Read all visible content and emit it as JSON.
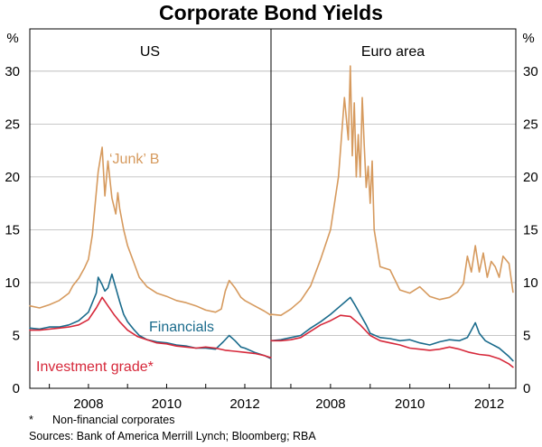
{
  "chart_data": {
    "type": "line",
    "title": "Corporate Bond Yields",
    "unit_left": "%",
    "unit_right": "%",
    "ylim": [
      0,
      34
    ],
    "yticks": [
      0,
      5,
      10,
      15,
      20,
      25,
      30
    ],
    "xlim": [
      2006.5,
      2012.67
    ],
    "xticks": [
      2008,
      2010,
      2012
    ],
    "xtick_labels": [
      "2008",
      "2010",
      "2012"
    ],
    "grid": true,
    "colors": {
      "junk": "#d69a5e",
      "financials": "#1a6b8c",
      "investment": "#d6283a"
    },
    "panels": [
      {
        "name": "US",
        "series": [
          {
            "name": "'Junk' B",
            "color": "#d69a5e",
            "x": [
              2006.5,
              2006.75,
              2007.0,
              2007.25,
              2007.5,
              2007.6,
              2007.75,
              2007.9,
              2008.0,
              2008.1,
              2008.25,
              2008.35,
              2008.42,
              2008.5,
              2008.6,
              2008.7,
              2008.75,
              2008.8,
              2008.9,
              2009.0,
              2009.15,
              2009.3,
              2009.5,
              2009.75,
              2010.0,
              2010.25,
              2010.5,
              2010.75,
              2011.0,
              2011.25,
              2011.4,
              2011.5,
              2011.6,
              2011.75,
              2011.9,
              2012.0,
              2012.25,
              2012.5,
              2012.67
            ],
            "y": [
              7.8,
              7.6,
              7.9,
              8.3,
              9.0,
              9.7,
              10.4,
              11.4,
              12.2,
              14.5,
              20.5,
              22.8,
              18.2,
              21.5,
              18.0,
              16.5,
              18.5,
              17.0,
              15.0,
              13.5,
              12.0,
              10.5,
              9.6,
              9.0,
              8.7,
              8.3,
              8.1,
              7.8,
              7.4,
              7.2,
              7.5,
              9.2,
              10.2,
              9.5,
              8.6,
              8.3,
              7.8,
              7.3,
              6.9
            ]
          },
          {
            "name": "Financials",
            "color": "#1a6b8c",
            "x": [
              2006.5,
              2006.75,
              2007.0,
              2007.25,
              2007.5,
              2007.75,
              2008.0,
              2008.2,
              2008.25,
              2008.35,
              2008.42,
              2008.5,
              2008.6,
              2008.7,
              2008.8,
              2008.9,
              2009.0,
              2009.15,
              2009.3,
              2009.5,
              2009.75,
              2010.0,
              2010.25,
              2010.5,
              2010.75,
              2011.0,
              2011.25,
              2011.45,
              2011.6,
              2011.75,
              2011.9,
              2012.0,
              2012.25,
              2012.5,
              2012.67
            ],
            "y": [
              5.7,
              5.6,
              5.8,
              5.8,
              6.0,
              6.4,
              7.2,
              9.0,
              10.5,
              9.8,
              9.2,
              9.5,
              10.8,
              9.5,
              8.2,
              7.0,
              6.3,
              5.6,
              5.0,
              4.6,
              4.4,
              4.3,
              4.1,
              4.0,
              3.8,
              3.8,
              3.7,
              4.4,
              5.0,
              4.5,
              3.9,
              3.8,
              3.4,
              3.1,
              2.8
            ]
          },
          {
            "name": "Investment grade*",
            "color": "#d6283a",
            "x": [
              2006.5,
              2006.75,
              2007.0,
              2007.25,
              2007.5,
              2007.75,
              2008.0,
              2008.2,
              2008.35,
              2008.5,
              2008.65,
              2008.8,
              2009.0,
              2009.25,
              2009.5,
              2009.75,
              2010.0,
              2010.25,
              2010.5,
              2010.75,
              2011.0,
              2011.25,
              2011.5,
              2011.75,
              2012.0,
              2012.25,
              2012.5,
              2012.67
            ],
            "y": [
              5.5,
              5.5,
              5.6,
              5.7,
              5.8,
              6.0,
              6.5,
              7.6,
              8.6,
              7.8,
              7.0,
              6.3,
              5.5,
              4.9,
              4.6,
              4.3,
              4.2,
              4.0,
              3.9,
              3.8,
              3.9,
              3.8,
              3.6,
              3.5,
              3.4,
              3.3,
              3.1,
              2.9
            ]
          }
        ]
      },
      {
        "name": "Euro area",
        "series": [
          {
            "name": "'Junk' B",
            "color": "#d69a5e",
            "x": [
              2006.5,
              2006.75,
              2007.0,
              2007.25,
              2007.5,
              2007.75,
              2008.0,
              2008.2,
              2008.35,
              2008.45,
              2008.5,
              2008.55,
              2008.6,
              2008.65,
              2008.7,
              2008.75,
              2008.8,
              2008.85,
              2008.9,
              2008.95,
              2009.0,
              2009.05,
              2009.1,
              2009.25,
              2009.5,
              2009.75,
              2010.0,
              2010.25,
              2010.5,
              2010.75,
              2011.0,
              2011.2,
              2011.35,
              2011.45,
              2011.55,
              2011.65,
              2011.75,
              2011.85,
              2011.95,
              2012.05,
              2012.15,
              2012.25,
              2012.35,
              2012.5,
              2012.6
            ],
            "y": [
              7.0,
              6.9,
              7.5,
              8.3,
              9.7,
              12.2,
              15.0,
              20.0,
              27.5,
              23.5,
              30.5,
              22.0,
              27.0,
              20.0,
              24.0,
              20.0,
              27.5,
              23.0,
              19.0,
              21.0,
              17.5,
              21.5,
              15.0,
              11.5,
              11.2,
              9.3,
              9.0,
              9.6,
              8.7,
              8.4,
              8.6,
              9.1,
              9.9,
              12.5,
              11.0,
              13.5,
              11.0,
              12.8,
              10.5,
              12.0,
              11.5,
              10.5,
              12.5,
              11.8,
              9.1
            ]
          },
          {
            "name": "Financials",
            "color": "#1a6b8c",
            "x": [
              2006.5,
              2006.75,
              2007.0,
              2007.25,
              2007.5,
              2007.75,
              2008.0,
              2008.25,
              2008.5,
              2008.6,
              2008.75,
              2008.9,
              2009.0,
              2009.25,
              2009.5,
              2009.75,
              2010.0,
              2010.25,
              2010.5,
              2010.75,
              2011.0,
              2011.25,
              2011.45,
              2011.55,
              2011.65,
              2011.75,
              2011.9,
              2012.0,
              2012.25,
              2012.5,
              2012.6
            ],
            "y": [
              4.5,
              4.6,
              4.8,
              5.0,
              5.7,
              6.3,
              7.0,
              7.8,
              8.6,
              8.0,
              7.0,
              6.0,
              5.2,
              4.8,
              4.7,
              4.5,
              4.6,
              4.3,
              4.1,
              4.4,
              4.6,
              4.5,
              4.8,
              5.5,
              6.2,
              5.2,
              4.5,
              4.3,
              3.8,
              3.0,
              2.6
            ]
          },
          {
            "name": "Investment grade*",
            "color": "#d6283a",
            "x": [
              2006.5,
              2006.75,
              2007.0,
              2007.25,
              2007.5,
              2007.75,
              2008.0,
              2008.25,
              2008.5,
              2008.75,
              2009.0,
              2009.25,
              2009.5,
              2009.75,
              2010.0,
              2010.25,
              2010.5,
              2010.75,
              2011.0,
              2011.25,
              2011.5,
              2011.75,
              2012.0,
              2012.25,
              2012.5,
              2012.6
            ],
            "y": [
              4.5,
              4.5,
              4.6,
              4.8,
              5.4,
              6.0,
              6.4,
              6.9,
              6.8,
              6.0,
              5.0,
              4.5,
              4.3,
              4.1,
              3.8,
              3.7,
              3.6,
              3.7,
              3.9,
              3.7,
              3.4,
              3.2,
              3.1,
              2.8,
              2.3,
              2.0
            ]
          }
        ]
      }
    ],
    "labels": {
      "junk": "‘Junk’ B",
      "financials": "Financials",
      "investment": "Investment grade*"
    }
  },
  "footnotes": {
    "asterisk_mark": "*",
    "asterisk_text": "Non-financial corporates",
    "sources": "Sources: Bank of America Merrill Lynch; Bloomberg; RBA"
  }
}
